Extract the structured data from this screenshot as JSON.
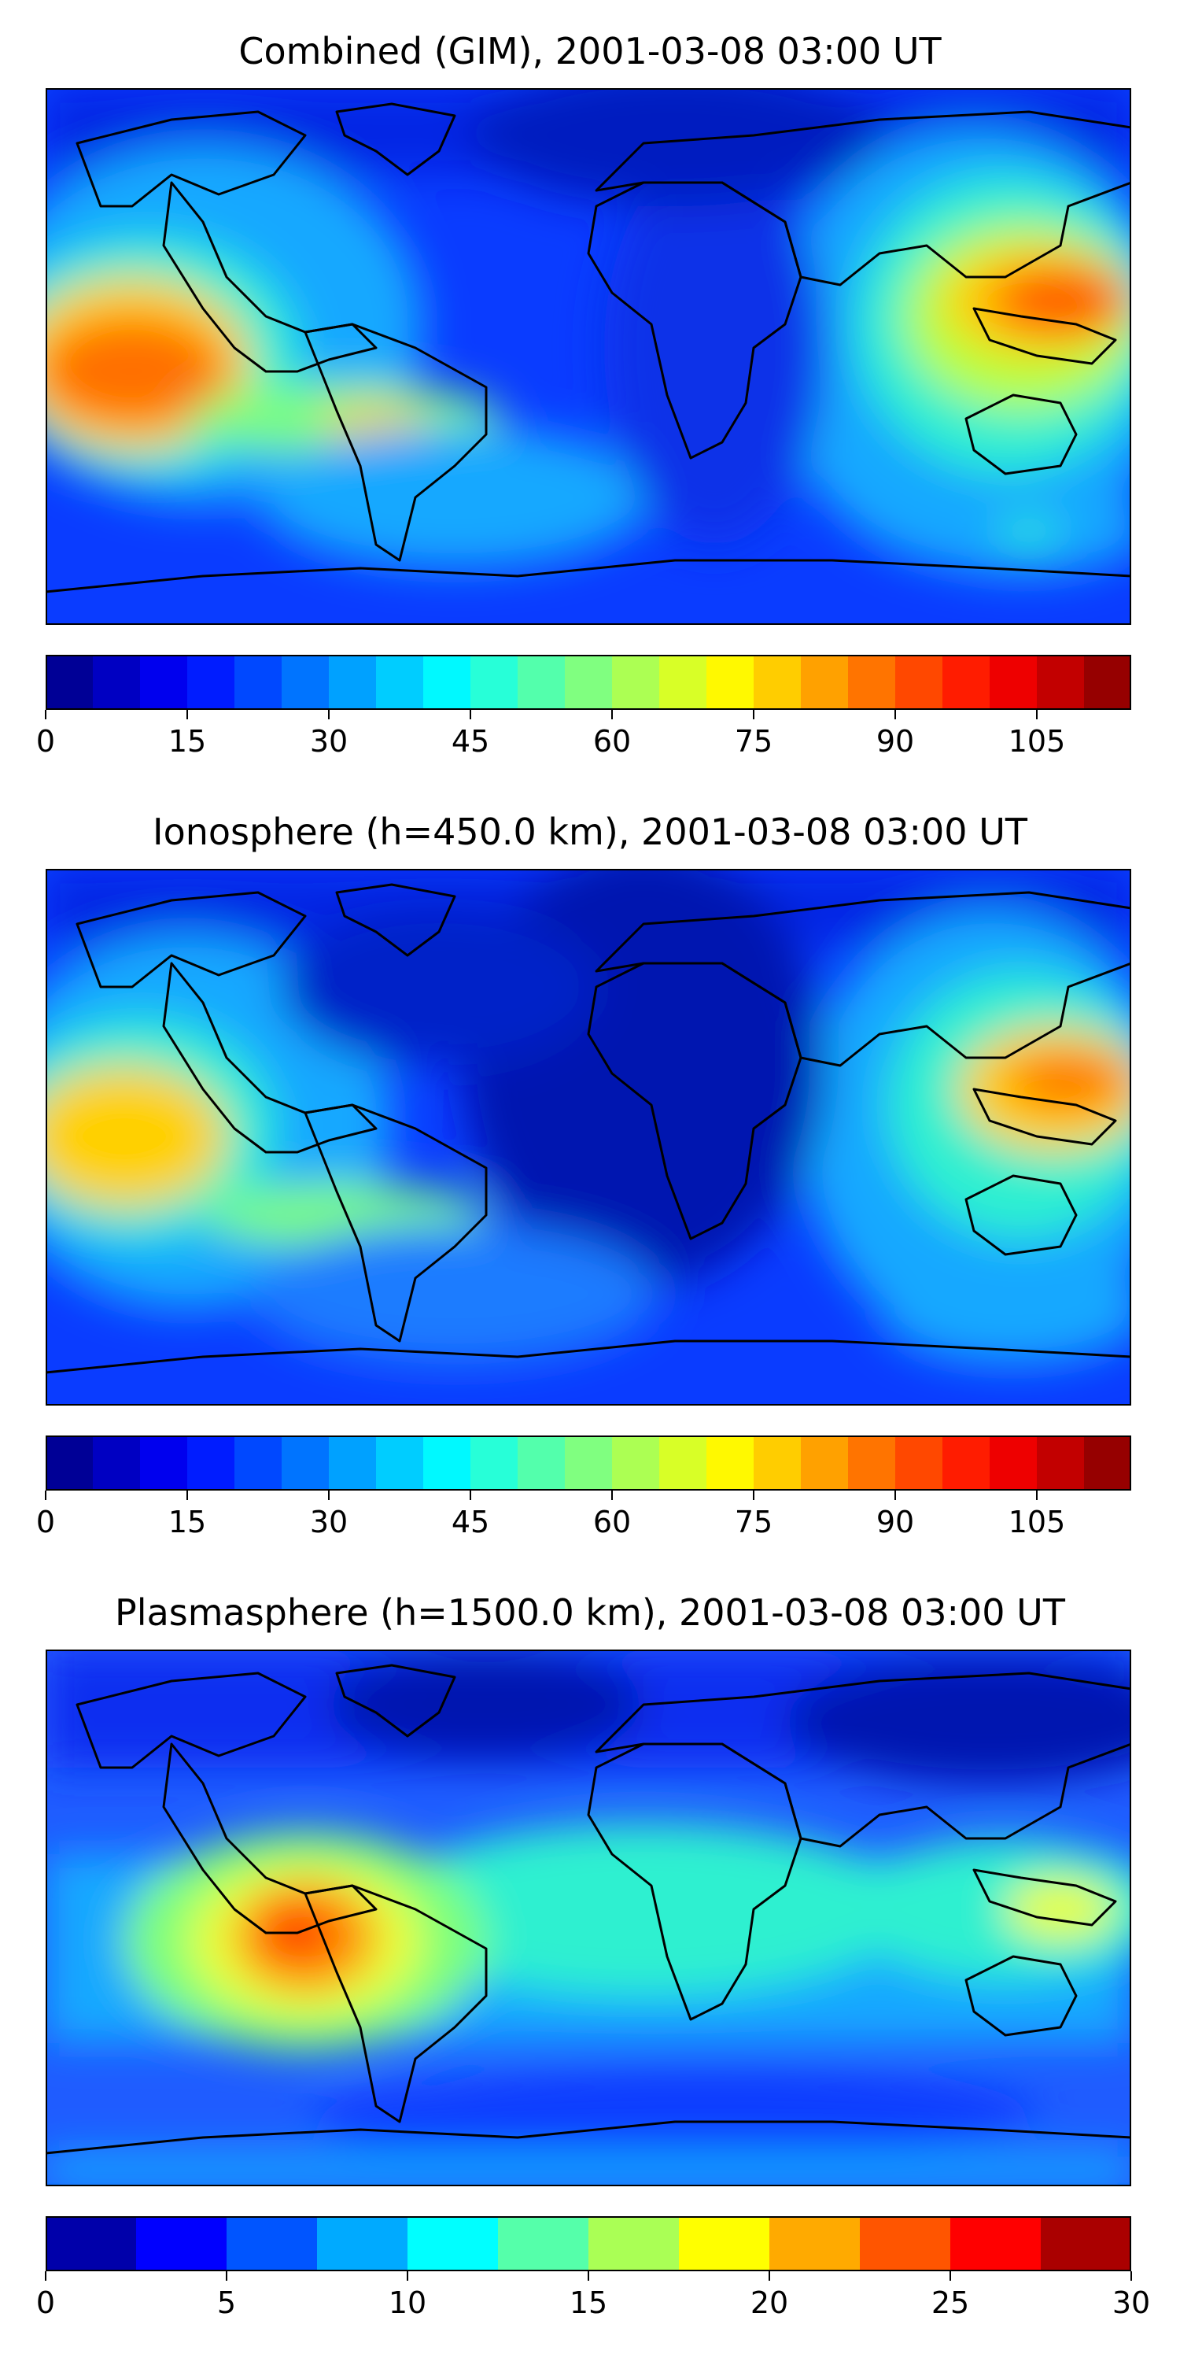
{
  "colormap": "jet",
  "panels": [
    {
      "title": "Combined (GIM), 2001-03-08 03:00 UT",
      "colorbar": {
        "min": 0,
        "max": 115,
        "levels": 23,
        "ticks": [
          0,
          15,
          30,
          45,
          60,
          75,
          90,
          105
        ],
        "tick_labels": [
          "0",
          "15",
          "30",
          "45",
          "60",
          "75",
          "90",
          "105"
        ]
      }
    },
    {
      "title": "Ionosphere  (h=450.0 km), 2001-03-08 03:00 UT",
      "colorbar": {
        "min": 0,
        "max": 115,
        "levels": 23,
        "ticks": [
          0,
          15,
          30,
          45,
          60,
          75,
          90,
          105
        ],
        "tick_labels": [
          "0",
          "15",
          "30",
          "45",
          "60",
          "75",
          "90",
          "105"
        ]
      }
    },
    {
      "title": "Plasmasphere (h=1500.0 km), 2001-03-08 03:00 UT",
      "colorbar": {
        "min": 0,
        "max": 30,
        "levels": 12,
        "ticks": [
          0,
          5,
          10,
          15,
          20,
          25,
          30
        ],
        "tick_labels": [
          "0",
          "5",
          "10",
          "15",
          "20",
          "25",
          "30"
        ]
      }
    }
  ]
}
